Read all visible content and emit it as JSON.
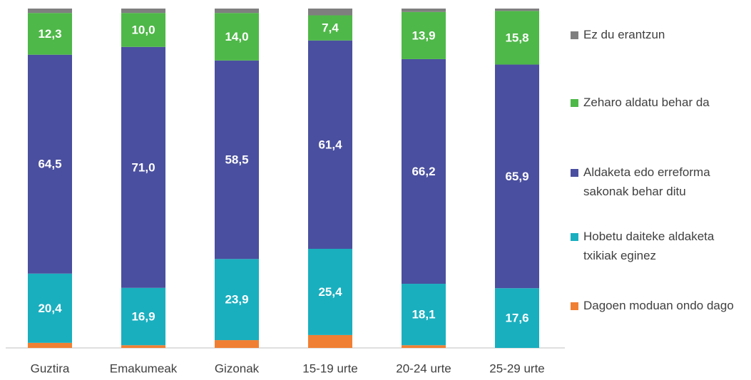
{
  "chart_data": {
    "type": "stacked_bar",
    "categories": [
      "Guztira",
      "Emakumeak",
      "Gizonak",
      "15-19 urte",
      "20-24 urte",
      "25-29 urte"
    ],
    "ylim": [
      0,
      100
    ],
    "series": [
      {
        "name": "Dagoen moduan ondo dago",
        "color": "#f07f33",
        "values": [
          1.5,
          0.8,
          2.3,
          3.8,
          0.8,
          0
        ]
      },
      {
        "name": "Hobetu daiteke aldaketa txikiak eginez",
        "color": "#19afbf",
        "values": [
          20.4,
          16.9,
          23.9,
          25.4,
          18.1,
          17.6
        ],
        "value_labels": [
          "20,4",
          "16,9",
          "23,9",
          "25,4",
          "18,1",
          "17,6"
        ]
      },
      {
        "name": "Aldaketa edo erreforma sakonak behar ditu",
        "color": "#4a4f9f",
        "values": [
          64.5,
          71.0,
          58.5,
          61.4,
          66.2,
          65.9
        ],
        "value_labels": [
          "64,5",
          "71,0",
          "58,5",
          "61,4",
          "66,2",
          "65,9"
        ]
      },
      {
        "name": "Zeharo aldatu behar da",
        "color": "#4eb848",
        "values": [
          12.3,
          10.0,
          14.0,
          7.4,
          13.9,
          15.8
        ],
        "value_labels": [
          "12,3",
          "10,0",
          "14,0",
          "7,4",
          "13,9",
          "15,8"
        ]
      },
      {
        "name": "Ez du erantzun",
        "color": "#7f7f7f",
        "values": [
          1.3,
          1.3,
          1.3,
          2.0,
          1.0,
          0.7
        ]
      }
    ]
  }
}
